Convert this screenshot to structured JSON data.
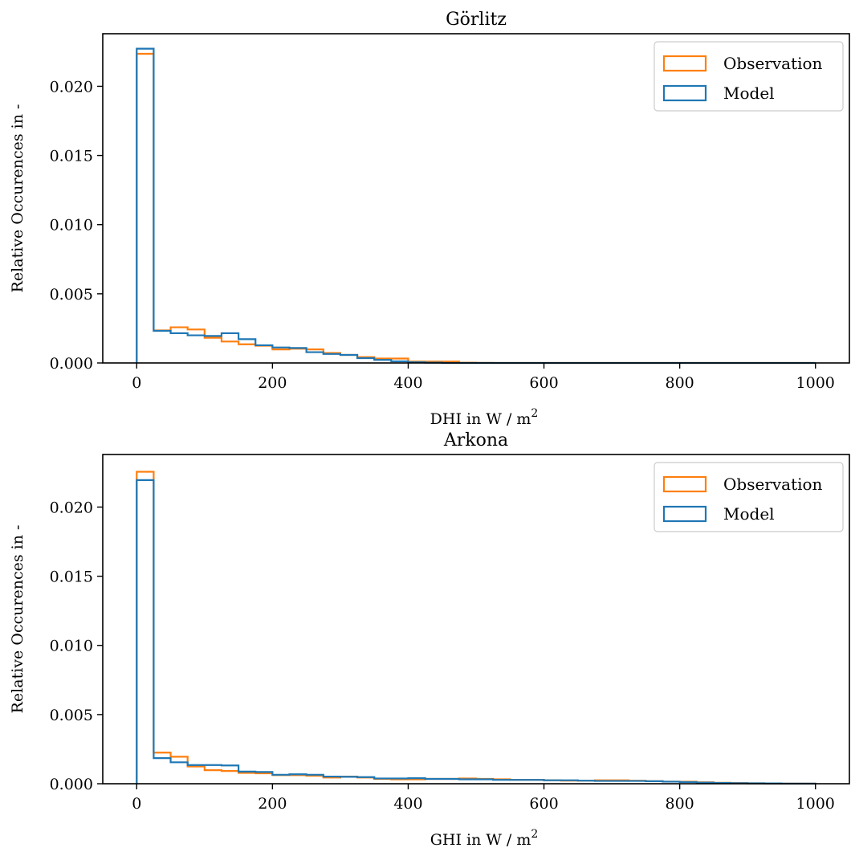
{
  "colors": {
    "observation": "#ff7f0e",
    "model": "#1f77b4",
    "axis": "#000000",
    "legend_border": "#cccccc"
  },
  "chart_data": [
    {
      "type": "histogram-step",
      "title": "Görlitz",
      "xlabel_prefix": "DHI in W / m",
      "xlabel_sup": "2",
      "ylabel": "Relative Occurences in -",
      "xlim": [
        -50,
        1050
      ],
      "ylim": [
        0,
        0.0238
      ],
      "xticks": [
        0,
        200,
        400,
        600,
        800,
        1000
      ],
      "xtick_labels": [
        "0",
        "200",
        "400",
        "600",
        "800",
        "1000"
      ],
      "yticks": [
        0.0,
        0.005,
        0.01,
        0.015,
        0.02
      ],
      "ytick_labels": [
        "0.000",
        "0.005",
        "0.010",
        "0.015",
        "0.020"
      ],
      "legend_position": "top-right",
      "bin_edges": [
        0,
        25,
        50,
        75,
        100,
        125,
        150,
        175,
        200,
        225,
        250,
        275,
        300,
        325,
        350,
        375,
        400,
        425,
        450,
        475,
        500,
        525,
        550,
        575,
        600,
        625,
        650,
        675,
        700,
        725,
        750,
        775,
        800,
        825,
        850,
        875,
        900,
        925,
        950,
        975,
        1000
      ],
      "series": [
        {
          "name": "Observation",
          "color_key": "observation",
          "values": [
            0.02235,
            0.00235,
            0.00258,
            0.00242,
            0.00182,
            0.00155,
            0.00135,
            0.00125,
            0.00098,
            0.00103,
            0.00098,
            0.00072,
            0.00058,
            0.00042,
            0.00032,
            0.00032,
            0.0001,
            0.0001,
            0.0001,
            2e-05,
            1e-05,
            0,
            0,
            0,
            0,
            0,
            0,
            0,
            0,
            0,
            0,
            0,
            0,
            0,
            0,
            0,
            0,
            0,
            0,
            0
          ]
        },
        {
          "name": "Model",
          "color_key": "model",
          "values": [
            0.02272,
            0.00232,
            0.00215,
            0.002,
            0.00195,
            0.00215,
            0.00172,
            0.00128,
            0.00112,
            0.00108,
            0.00078,
            0.00065,
            0.00058,
            0.00035,
            0.00022,
            0.00012,
            5e-05,
            2e-05,
            0,
            0,
            0,
            0,
            0,
            0,
            0,
            0,
            0,
            0,
            0,
            0,
            0,
            0,
            0,
            0,
            0,
            0,
            0,
            0,
            0,
            0
          ]
        }
      ]
    },
    {
      "type": "histogram-step",
      "title": "Arkona",
      "xlabel_prefix": "GHI in W / m",
      "xlabel_sup": "2",
      "ylabel": "Relative Occurences in -",
      "xlim": [
        -50,
        1050
      ],
      "ylim": [
        0,
        0.0238
      ],
      "xticks": [
        0,
        200,
        400,
        600,
        800,
        1000
      ],
      "xtick_labels": [
        "0",
        "200",
        "400",
        "600",
        "800",
        "1000"
      ],
      "yticks": [
        0.0,
        0.005,
        0.01,
        0.015,
        0.02
      ],
      "ytick_labels": [
        "0.000",
        "0.005",
        "0.010",
        "0.015",
        "0.020"
      ],
      "legend_position": "top-right",
      "bin_edges": [
        0,
        25,
        50,
        75,
        100,
        125,
        150,
        175,
        200,
        225,
        250,
        275,
        300,
        325,
        350,
        375,
        400,
        425,
        450,
        475,
        500,
        525,
        550,
        575,
        600,
        625,
        650,
        675,
        700,
        725,
        750,
        775,
        800,
        825,
        850,
        875,
        900,
        925,
        950,
        975,
        1000
      ],
      "series": [
        {
          "name": "Observation",
          "color_key": "observation",
          "values": [
            0.02255,
            0.00225,
            0.00195,
            0.00125,
            0.00098,
            0.00092,
            0.00078,
            0.00075,
            0.00062,
            0.00062,
            0.00058,
            0.00045,
            0.00052,
            0.00045,
            0.00035,
            0.00032,
            0.00032,
            0.00035,
            0.00035,
            0.00038,
            0.00035,
            0.00032,
            0.00028,
            0.00028,
            0.00025,
            0.00022,
            0.00022,
            0.00025,
            0.00025,
            0.00022,
            0.00018,
            0.00015,
            0.00015,
            0.0001,
            7e-05,
            5e-05,
            3e-05,
            2e-05,
            1e-05,
            1e-05
          ]
        },
        {
          "name": "Model",
          "color_key": "model",
          "values": [
            0.02195,
            0.00185,
            0.00155,
            0.00135,
            0.00135,
            0.00132,
            0.00088,
            0.00085,
            0.00065,
            0.00068,
            0.00065,
            0.00052,
            0.0005,
            0.00048,
            0.00038,
            0.00038,
            0.0004,
            0.00035,
            0.00035,
            0.00032,
            0.00032,
            0.00028,
            0.00028,
            0.00028,
            0.00025,
            0.00025,
            0.00022,
            0.0002,
            0.0002,
            0.0002,
            0.00018,
            0.00015,
            0.00012,
            8e-05,
            5e-05,
            4e-05,
            3e-05,
            2e-05,
            1e-05,
            1e-05
          ]
        }
      ]
    }
  ]
}
